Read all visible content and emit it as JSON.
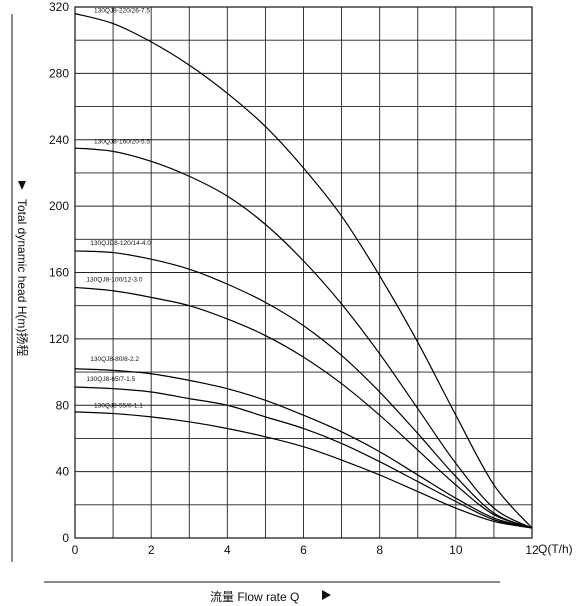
{
  "chart_data": {
    "type": "line",
    "title": "",
    "xlabel": "流量 Flow rate Q",
    "x_unit_label": "Q(T/h)",
    "ylabel": "Total dynamic head H(m)扬程",
    "xlim": [
      0,
      12
    ],
    "ylim": [
      0,
      320
    ],
    "x_ticks": [
      0,
      2,
      4,
      6,
      8,
      10,
      12
    ],
    "y_ticks": [
      0,
      40,
      80,
      120,
      160,
      200,
      240,
      280,
      320
    ],
    "x_grid_step": 1,
    "y_grid_step": 20,
    "grid": true,
    "series": [
      {
        "name": "130QJ8-220/26-7.5",
        "points": [
          [
            0,
            316
          ],
          [
            1,
            310
          ],
          [
            2,
            299
          ],
          [
            3,
            285
          ],
          [
            4,
            268
          ],
          [
            5,
            248
          ],
          [
            6,
            223
          ],
          [
            7,
            194
          ],
          [
            8,
            158
          ],
          [
            9,
            118
          ],
          [
            10,
            74
          ],
          [
            11,
            32
          ],
          [
            12,
            6
          ]
        ]
      },
      {
        "name": "130QJ8-160/20-5.5",
        "points": [
          [
            0,
            235
          ],
          [
            1,
            233
          ],
          [
            2,
            227
          ],
          [
            3,
            218
          ],
          [
            4,
            206
          ],
          [
            5,
            189
          ],
          [
            6,
            167
          ],
          [
            7,
            141
          ],
          [
            8,
            111
          ],
          [
            9,
            78
          ],
          [
            10,
            45
          ],
          [
            11,
            18
          ],
          [
            12,
            6
          ]
        ]
      },
      {
        "name": "130QJ8-120/14-4.0",
        "points": [
          [
            0,
            173
          ],
          [
            1,
            172
          ],
          [
            2,
            168
          ],
          [
            3,
            162
          ],
          [
            4,
            153
          ],
          [
            5,
            142
          ],
          [
            6,
            128
          ],
          [
            7,
            110
          ],
          [
            8,
            88
          ],
          [
            9,
            63
          ],
          [
            10,
            37
          ],
          [
            11,
            15
          ],
          [
            12,
            6
          ]
        ]
      },
      {
        "name": "130QJ8-100/12-3.0",
        "points": [
          [
            0,
            151
          ],
          [
            1,
            149
          ],
          [
            2,
            145
          ],
          [
            3,
            140
          ],
          [
            4,
            132
          ],
          [
            5,
            122
          ],
          [
            6,
            109
          ],
          [
            7,
            93
          ],
          [
            8,
            74
          ],
          [
            9,
            53
          ],
          [
            10,
            32
          ],
          [
            11,
            14
          ],
          [
            12,
            6
          ]
        ]
      },
      {
        "name": "130QJ8-80/8-2.2",
        "points": [
          [
            0,
            102
          ],
          [
            1,
            101
          ],
          [
            2,
            99
          ],
          [
            3,
            95
          ],
          [
            4,
            90
          ],
          [
            5,
            83
          ],
          [
            6,
            74
          ],
          [
            7,
            64
          ],
          [
            8,
            52
          ],
          [
            9,
            38
          ],
          [
            10,
            24
          ],
          [
            11,
            12
          ],
          [
            12,
            6
          ]
        ]
      },
      {
        "name": "130QJ8-65/7-1.5",
        "points": [
          [
            0,
            91
          ],
          [
            1,
            90
          ],
          [
            2,
            88
          ],
          [
            3,
            84
          ],
          [
            4,
            80
          ],
          [
            5,
            73
          ],
          [
            6,
            66
          ],
          [
            7,
            57
          ],
          [
            8,
            46
          ],
          [
            9,
            34
          ],
          [
            10,
            22
          ],
          [
            11,
            11
          ],
          [
            12,
            6
          ]
        ]
      },
      {
        "name": "130QJ8-55/6-1.1",
        "points": [
          [
            0,
            76
          ],
          [
            1,
            75
          ],
          [
            2,
            73
          ],
          [
            3,
            70
          ],
          [
            4,
            66
          ],
          [
            5,
            61
          ],
          [
            6,
            55
          ],
          [
            7,
            47
          ],
          [
            8,
            38
          ],
          [
            9,
            28
          ],
          [
            10,
            18
          ],
          [
            11,
            10
          ],
          [
            12,
            6
          ]
        ]
      }
    ],
    "curve_labels": [
      {
        "text": "130QJ8-220/26-7.5",
        "x": 0.5,
        "y": 316
      },
      {
        "text": "130QJ8-160/20-5.5",
        "x": 0.5,
        "y": 237
      },
      {
        "text": "130QJD8-120/14-4.0",
        "x": 0.4,
        "y": 176
      },
      {
        "text": "130QJ8-100/12-3.0",
        "x": 0.3,
        "y": 154
      },
      {
        "text": "130QJ8-80/8-2.2",
        "x": 0.4,
        "y": 106
      },
      {
        "text": "130QJ8-65/7-1.5",
        "x": 0.3,
        "y": 94
      },
      {
        "text": "130QJ8-55/6-1.1",
        "x": 0.5,
        "y": 78
      }
    ]
  }
}
